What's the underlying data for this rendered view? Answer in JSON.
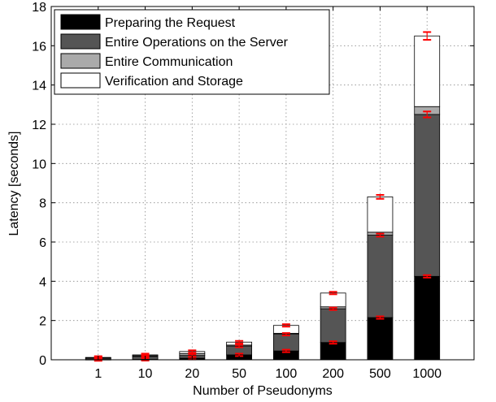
{
  "chart_data": {
    "type": "bar",
    "stacked": true,
    "title": "",
    "xlabel": "Number of Pseudonyms",
    "ylabel": "Latency [seconds]",
    "categories": [
      "1",
      "10",
      "20",
      "50",
      "100",
      "200",
      "500",
      "1000"
    ],
    "ylim": [
      0,
      18
    ],
    "yticks": [
      0,
      2,
      4,
      6,
      8,
      10,
      12,
      14,
      16,
      18
    ],
    "grid": true,
    "legend_position": "top-left",
    "series": [
      {
        "name": "Preparing the Request",
        "color": "#000000",
        "values": [
          0.01,
          0.02,
          0.08,
          0.25,
          0.45,
          0.88,
          2.15,
          4.25
        ]
      },
      {
        "name": "Entire Operations on the Server",
        "color": "#555555",
        "values": [
          0.07,
          0.15,
          0.14,
          0.45,
          0.85,
          1.72,
          4.2,
          8.25
        ]
      },
      {
        "name": "Entire Communication",
        "color": "#aaaaaa",
        "values": [
          0.02,
          0.04,
          0.1,
          0.05,
          0.05,
          0.1,
          0.15,
          0.4
        ]
      },
      {
        "name": "Verification and Storage",
        "color": "#ffffff",
        "values": [
          0.02,
          0.04,
          0.1,
          0.15,
          0.4,
          0.7,
          1.8,
          3.6
        ]
      }
    ],
    "error_bar_color": "#ff0000"
  }
}
